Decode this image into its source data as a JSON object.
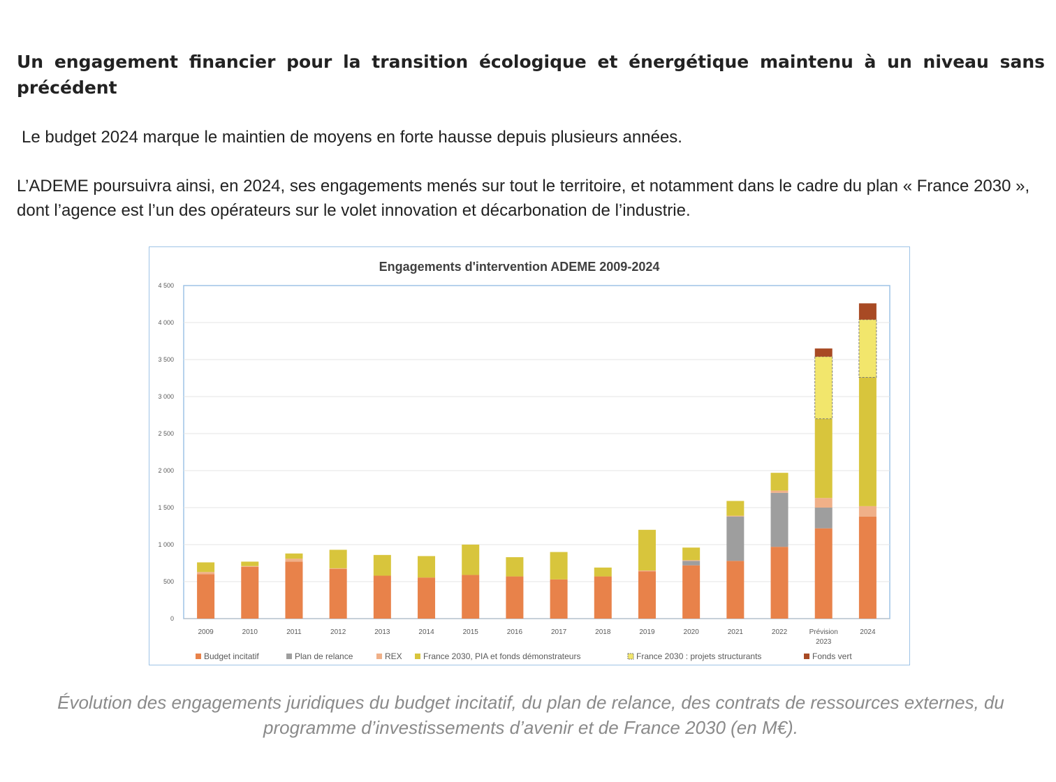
{
  "article": {
    "heading": "Un engagement financier pour la transition écologique et énergétique maintenu à un niveau sans précédent",
    "paragraph1": "Le budget 2024 marque le maintien de moyens en forte hausse depuis plusieurs années.",
    "paragraph2": "L’ADEME poursuivra ainsi, en 2024, ses engagements menés sur tout le territoire, et notamment dans le cadre du plan « France 2030 », dont l’agence est l’un des opérateurs sur le volet innovation et décarbonation de l’industrie.",
    "caption": "Évolution des engagements juridiques du budget incitatif, du plan de relance, des contrats de ressources externes, du programme d’investissements d’avenir et de France 2030 (en M€)."
  },
  "chart_data": {
    "type": "bar",
    "stacked": true,
    "title": "Engagements d'intervention ADEME 2009-2024",
    "xlabel": "",
    "ylabel": "",
    "ylim": [
      0,
      4500
    ],
    "yticks": [
      0,
      500,
      1000,
      1500,
      2000,
      2500,
      3000,
      3500,
      4000,
      4500
    ],
    "ytick_labels": [
      "0",
      "500",
      "1 000",
      "1 500",
      "2 000",
      "2 500",
      "3 000",
      "3 500",
      "4 000",
      "4 500"
    ],
    "grid": true,
    "legend_position": "bottom",
    "categories": [
      [
        "2009"
      ],
      [
        "2010"
      ],
      [
        "2011"
      ],
      [
        "2012"
      ],
      [
        "2013"
      ],
      [
        "2014"
      ],
      [
        "2015"
      ],
      [
        "2016"
      ],
      [
        "2017"
      ],
      [
        "2018"
      ],
      [
        "2019"
      ],
      [
        "2020"
      ],
      [
        "2021"
      ],
      [
        "2022"
      ],
      [
        "Prévision",
        "2023"
      ],
      [
        "2024"
      ]
    ],
    "series": [
      {
        "name": "Budget incitatif",
        "color": "#e8824a",
        "style": "solid",
        "values": [
          600,
          700,
          770,
          670,
          580,
          555,
          590,
          570,
          530,
          570,
          640,
          720,
          780,
          970,
          1220,
          1380
        ]
      },
      {
        "name": "Plan de relance",
        "color": "#9e9e9e",
        "style": "solid",
        "values": [
          0,
          0,
          0,
          0,
          0,
          0,
          0,
          0,
          0,
          0,
          0,
          60,
          600,
          730,
          280,
          0
        ]
      },
      {
        "name": "REX",
        "color": "#f0b088",
        "style": "solid",
        "values": [
          30,
          10,
          40,
          10,
          0,
          0,
          0,
          0,
          0,
          0,
          10,
          10,
          10,
          30,
          130,
          140
        ]
      },
      {
        "name": "France 2030, PIA et fonds démonstrateurs",
        "color": "#d8c53c",
        "style": "solid",
        "values": [
          130,
          60,
          70,
          250,
          280,
          290,
          410,
          260,
          370,
          120,
          550,
          170,
          200,
          240,
          1070,
          1740
        ]
      },
      {
        "name": "France 2030 : projets structurants",
        "color": "#f2e66c",
        "style": "dashed",
        "values": [
          0,
          0,
          0,
          0,
          0,
          0,
          0,
          0,
          0,
          0,
          0,
          0,
          0,
          0,
          840,
          780
        ]
      },
      {
        "name": "Fonds vert",
        "color": "#a84a24",
        "style": "solid",
        "values": [
          0,
          0,
          0,
          0,
          0,
          0,
          0,
          0,
          0,
          0,
          0,
          0,
          0,
          0,
          110,
          220
        ]
      }
    ]
  }
}
